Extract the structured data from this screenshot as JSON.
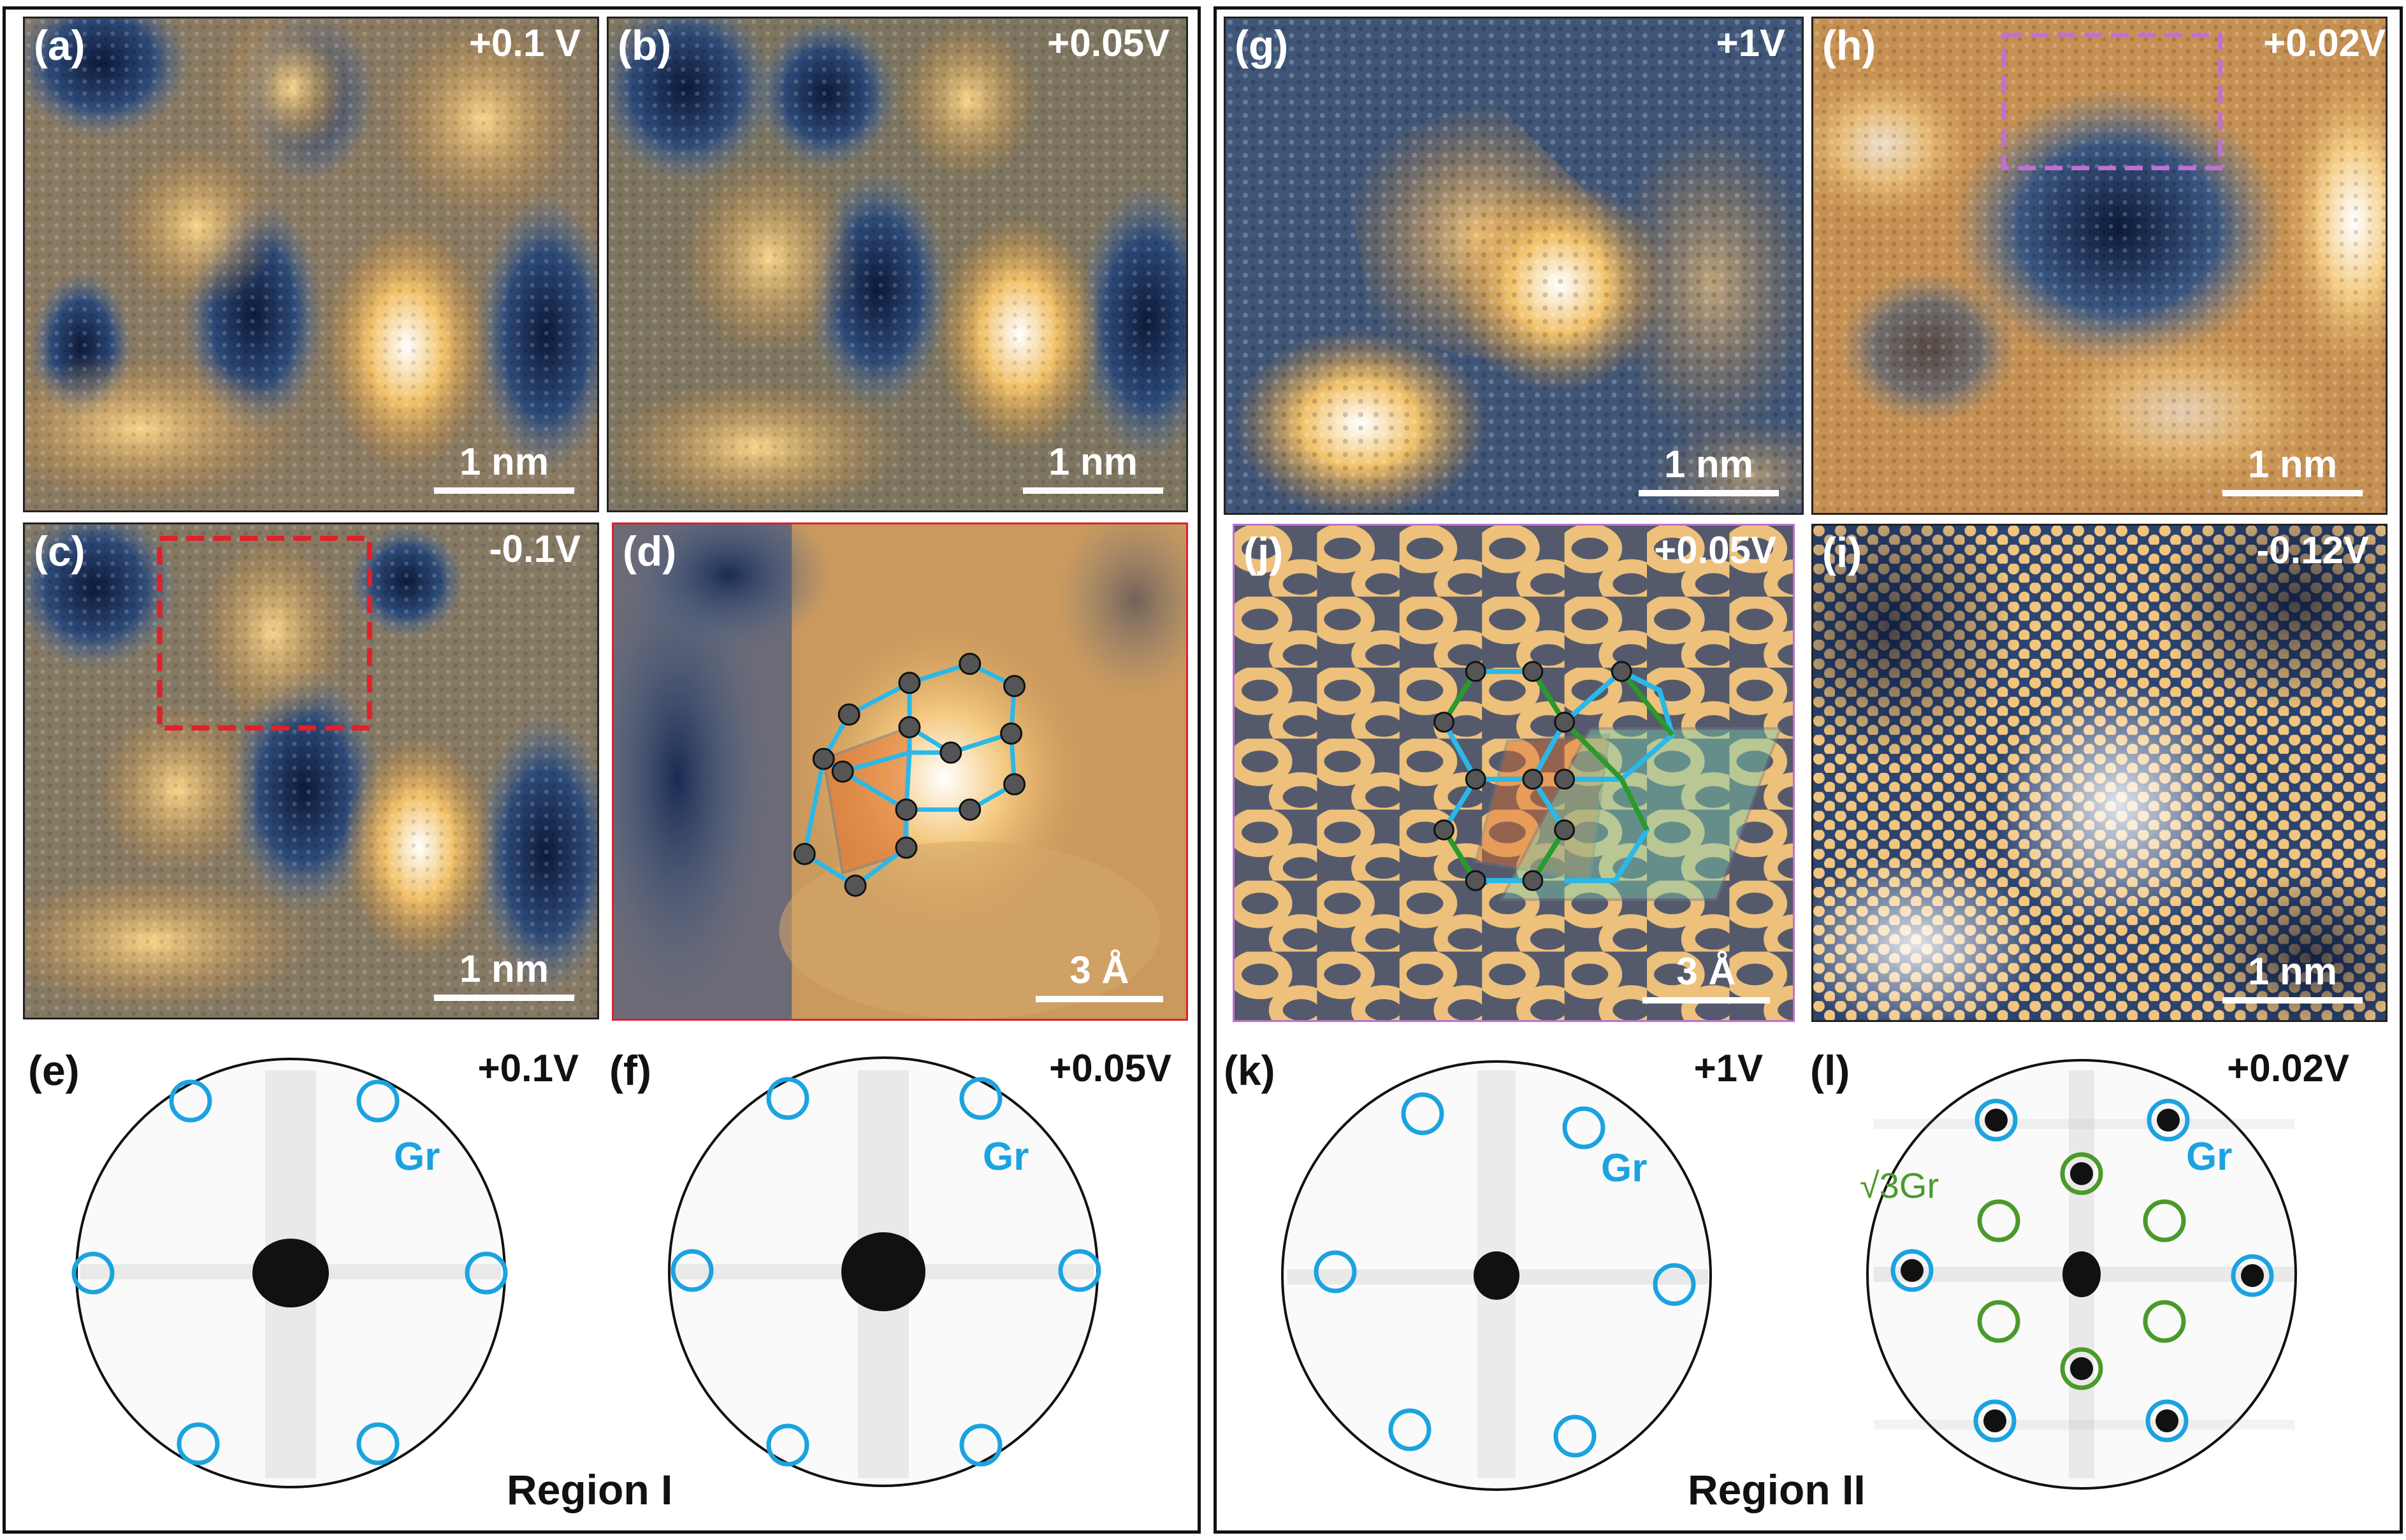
{
  "regions": {
    "left": {
      "label": "Region I"
    },
    "right": {
      "label": "Region II"
    }
  },
  "panels": {
    "a": {
      "label": "(a)",
      "bias": "+0.1 V",
      "scale": "1 nm"
    },
    "b": {
      "label": "(b)",
      "bias": "+0.05V",
      "scale": "1 nm"
    },
    "c": {
      "label": "(c)",
      "bias": "-0.1V",
      "scale": "1 nm"
    },
    "d": {
      "label": "(d)",
      "scale": "3 Å"
    },
    "e": {
      "label": "(e)",
      "bias": "+0.1V",
      "spot_label": "Gr"
    },
    "f": {
      "label": "(f)",
      "bias": "+0.05V",
      "spot_label": "Gr"
    },
    "g": {
      "label": "(g)",
      "bias": "+1V",
      "scale": "1 nm"
    },
    "h": {
      "label": "(h)",
      "bias": "+0.02V",
      "scale": "1 nm"
    },
    "i": {
      "label": "(i)",
      "bias": "-0.12V",
      "scale": "1 nm"
    },
    "j": {
      "label": "(j)",
      "bias": "+0.05V",
      "scale": "3 Å"
    },
    "k": {
      "label": "(k)",
      "bias": "+1V",
      "spot_label": "Gr"
    },
    "l": {
      "label": "(l)",
      "bias": "+0.02V",
      "spot_label": "Gr",
      "sqrt_label": "√3Gr"
    }
  },
  "colors": {
    "graphene_ring": "#1aa3e0",
    "sqrt3_ring": "#4a9a2a",
    "red_box": "#e0202a",
    "pink_box": "#c070d0",
    "bond_cyan": "#2ab8e8",
    "bond_green": "#2a9a2a"
  }
}
